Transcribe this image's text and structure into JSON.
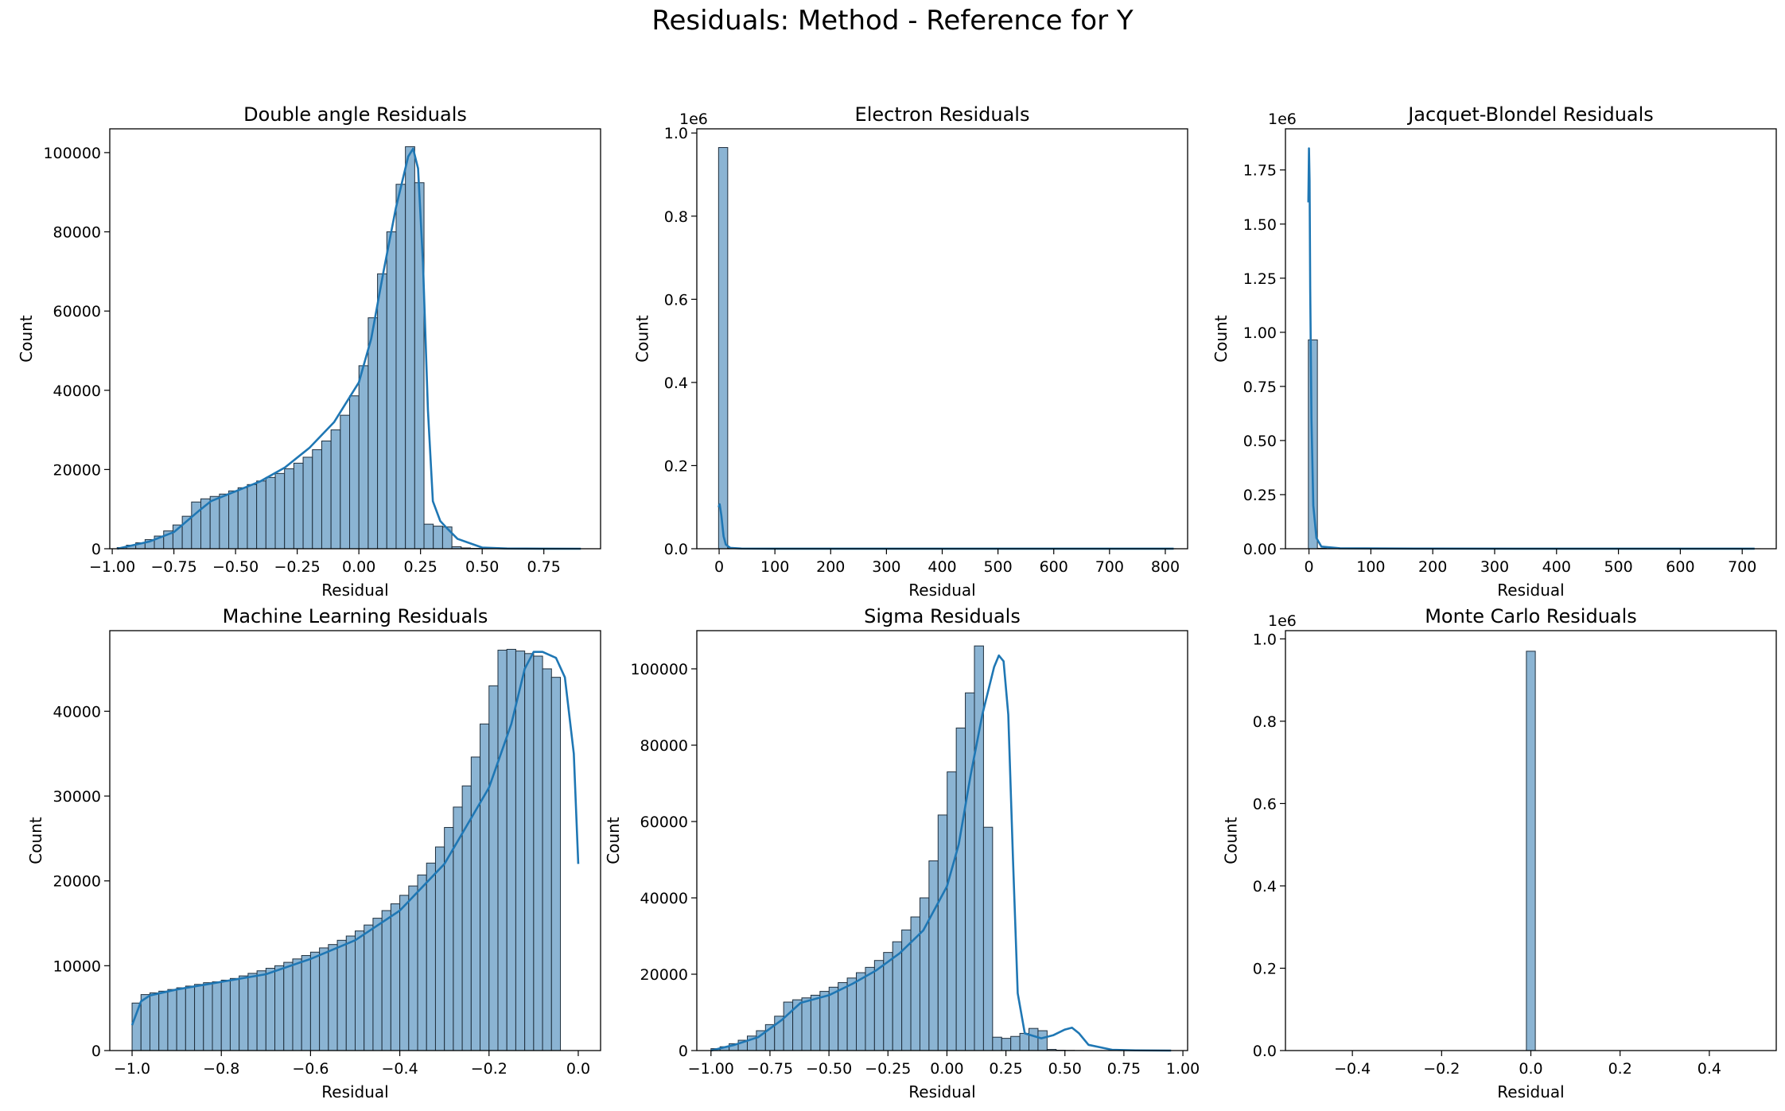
{
  "figure": {
    "suptitle": "Residuals: Method - Reference for Y"
  },
  "colors": {
    "bar_fill": "#8bb4d3",
    "bar_edge": "#1f2f3d",
    "kde_line": "#1f77b4"
  },
  "chart_data": [
    {
      "type": "bar",
      "subtype": "histogram",
      "title": "Double angle Residuals",
      "xlabel": "Residual",
      "ylabel": "Count",
      "xlim": [
        -1.01,
        0.98
      ],
      "ylim": [
        0,
        106000
      ],
      "xticks": [
        -1.0,
        -0.75,
        -0.5,
        -0.25,
        0.0,
        0.25,
        0.5,
        0.75
      ],
      "xtick_labels": [
        "−1.00",
        "−0.75",
        "−0.50",
        "−0.25",
        "0.00",
        "0.25",
        "0.50",
        "0.75"
      ],
      "yticks": [
        0,
        20000,
        40000,
        60000,
        80000,
        100000
      ],
      "ytick_labels": [
        "0",
        "20000",
        "40000",
        "60000",
        "80000",
        "100000"
      ],
      "bin_start": -0.98,
      "bin_width": 0.0377,
      "values": [
        300,
        900,
        1500,
        2300,
        3200,
        4500,
        6000,
        8200,
        11800,
        12600,
        13200,
        13800,
        14600,
        15400,
        16200,
        17100,
        18000,
        19000,
        20200,
        21600,
        23100,
        25000,
        27200,
        30000,
        33700,
        38600,
        46200,
        58300,
        69400,
        80000,
        92000,
        101500,
        92400,
        6200,
        5700,
        5500,
        500,
        200,
        100,
        60,
        30,
        20,
        10,
        5,
        3,
        2,
        1,
        1
      ],
      "kde": {
        "x": [
          -0.98,
          -0.85,
          -0.75,
          -0.65,
          -0.6,
          -0.5,
          -0.4,
          -0.3,
          -0.2,
          -0.1,
          0.0,
          0.05,
          0.1,
          0.15,
          0.2,
          0.22,
          0.24,
          0.26,
          0.28,
          0.3,
          0.33,
          0.36,
          0.4,
          0.5,
          0.6,
          0.75,
          0.9
        ],
        "y": [
          0,
          1800,
          4200,
          9500,
          12000,
          14500,
          17000,
          20500,
          25500,
          32000,
          42000,
          53000,
          70000,
          86000,
          99000,
          101000,
          96000,
          72000,
          35000,
          12000,
          7000,
          5000,
          2500,
          300,
          60,
          10,
          0
        ]
      }
    },
    {
      "type": "bar",
      "subtype": "histogram",
      "title": "Electron Residuals",
      "xlabel": "Residual",
      "ylabel": "Count",
      "scale_label": "1e6",
      "xlim": [
        -40,
        840
      ],
      "ylim": [
        0,
        1.01
      ],
      "xticks": [
        0,
        100,
        200,
        300,
        400,
        500,
        600,
        700,
        800
      ],
      "xtick_labels": [
        "0",
        "100",
        "200",
        "300",
        "400",
        "500",
        "600",
        "700",
        "800"
      ],
      "yticks": [
        0.0,
        0.2,
        0.4,
        0.6,
        0.8,
        1.0
      ],
      "ytick_labels": [
        "0.0",
        "0.2",
        "0.4",
        "0.6",
        "0.8",
        "1.0"
      ],
      "bin_start": -1,
      "bin_width": 16.4,
      "values": [
        0.965,
        0.0015,
        0.0005,
        0.0002,
        0.0001,
        0.0001,
        0.0001,
        0.0001,
        0.0001,
        0.0001,
        0.0001,
        0.0001,
        0.0001,
        0.0001,
        0.0001,
        0.0001,
        0.0001,
        0.0001,
        0.0001,
        0.0001,
        0.0001,
        0.0001,
        0.0001,
        0.0001,
        0.0001,
        0.0001,
        0.0001,
        0.0001,
        0.0001,
        0.0001,
        0.0001,
        0.0001,
        0.0001,
        0.0001,
        0.0001,
        0.0001,
        0.0001,
        0.0001,
        0.0001,
        0.0001,
        0.0001,
        0.0001,
        0.0001,
        0.0001,
        0.0001,
        0.0001,
        0.0001,
        0.0001,
        0.0001,
        0.0001
      ],
      "kde": {
        "x": [
          -1,
          1,
          4,
          8,
          12,
          20,
          40,
          100,
          300,
          500,
          700,
          815
        ],
        "y": [
          0.1,
          0.107,
          0.08,
          0.03,
          0.01,
          0.002,
          0.0005,
          0.0001,
          0.0001,
          0.0001,
          0.0001,
          0.0001
        ]
      }
    },
    {
      "type": "bar",
      "subtype": "histogram",
      "title": "Jacquet-Blondel Residuals",
      "xlabel": "Residual",
      "ylabel": "Count",
      "scale_label": "1e6",
      "xlim": [
        -38,
        755
      ],
      "ylim": [
        0,
        1.94
      ],
      "xticks": [
        0,
        100,
        200,
        300,
        400,
        500,
        600,
        700
      ],
      "xtick_labels": [
        "0",
        "100",
        "200",
        "300",
        "400",
        "500",
        "600",
        "700"
      ],
      "yticks": [
        0.0,
        0.25,
        0.5,
        0.75,
        1.0,
        1.25,
        1.5,
        1.75
      ],
      "ytick_labels": [
        "0.00",
        "0.25",
        "0.50",
        "0.75",
        "1.00",
        "1.25",
        "1.50",
        "1.75"
      ],
      "bin_start": -1,
      "bin_width": 14.6,
      "values": [
        0.965,
        0.002,
        0.0007,
        0.0003,
        0.0002,
        0.0001,
        0.0001,
        0.0001,
        0.0001,
        0.0001,
        0.0001,
        0.0001,
        0.0001,
        0.0001,
        0.0001,
        0.0001,
        0.0001,
        0.0001,
        0.0001,
        0.0001,
        0.0001,
        0.0001,
        0.0001,
        0.0001,
        0.0001,
        0.0001,
        0.0001,
        0.0001,
        0.0001,
        0.0001,
        0.0001,
        0.0001,
        0.0001,
        0.0001,
        0.0001,
        0.0001,
        0.0001,
        0.0001,
        0.0001,
        0.0001,
        0.0001,
        0.0001,
        0.0001,
        0.0001,
        0.0001,
        0.0001,
        0.0001,
        0.0001,
        0.0001,
        0.0001
      ],
      "kde": {
        "x": [
          -1,
          0,
          1,
          2,
          4,
          7,
          12,
          20,
          50,
          200,
          500,
          720
        ],
        "y": [
          1.6,
          1.85,
          1.7,
          1.2,
          0.6,
          0.2,
          0.05,
          0.01,
          0.002,
          0.0005,
          0.0002,
          0.0001
        ]
      }
    },
    {
      "type": "bar",
      "subtype": "histogram",
      "title": "Machine Learning Residuals",
      "xlabel": "Residual",
      "ylabel": "Count",
      "xlim": [
        -1.05,
        0.05
      ],
      "ylim": [
        0,
        49500
      ],
      "xticks": [
        -1.0,
        -0.8,
        -0.6,
        -0.4,
        -0.2,
        0.0
      ],
      "xtick_labels": [
        "−1.0",
        "−0.8",
        "−0.6",
        "−0.4",
        "−0.2",
        "0.0"
      ],
      "yticks": [
        0,
        10000,
        20000,
        30000,
        40000
      ],
      "ytick_labels": [
        "0",
        "10000",
        "20000",
        "30000",
        "40000"
      ],
      "bin_start": -1.0,
      "bin_width": 0.02,
      "values": [
        5600,
        6600,
        6800,
        7000,
        7200,
        7400,
        7600,
        7800,
        8000,
        8100,
        8300,
        8500,
        8800,
        9100,
        9400,
        9700,
        10000,
        10400,
        10800,
        11200,
        11600,
        12100,
        12500,
        13000,
        13500,
        14100,
        14800,
        15600,
        16500,
        17300,
        18300,
        19400,
        20700,
        22100,
        24000,
        26300,
        28700,
        31200,
        34600,
        38500,
        43000,
        47200,
        47300,
        47100,
        46800,
        46500,
        45000,
        44000
      ],
      "kde": {
        "x": [
          -1.0,
          -0.98,
          -0.96,
          -0.9,
          -0.8,
          -0.7,
          -0.6,
          -0.5,
          -0.4,
          -0.3,
          -0.2,
          -0.15,
          -0.12,
          -0.1,
          -0.08,
          -0.05,
          -0.03,
          -0.01,
          0.0
        ],
        "y": [
          3000,
          5800,
          6500,
          7200,
          8100,
          9000,
          10800,
          13000,
          16500,
          22000,
          31000,
          38500,
          45000,
          47000,
          47000,
          46300,
          44000,
          35000,
          22000
        ]
      }
    },
    {
      "type": "bar",
      "subtype": "histogram",
      "title": "Sigma Residuals",
      "xlabel": "Residual",
      "ylabel": "Count",
      "xlim": [
        -1.06,
        1.02
      ],
      "ylim": [
        0,
        110000
      ],
      "xticks": [
        -1.0,
        -0.75,
        -0.5,
        -0.25,
        0.0,
        0.25,
        0.5,
        0.75,
        1.0
      ],
      "xtick_labels": [
        "−1.00",
        "−0.75",
        "−0.50",
        "−0.25",
        "0.00",
        "0.25",
        "0.50",
        "0.75",
        "1.00"
      ],
      "yticks": [
        0,
        20000,
        40000,
        60000,
        80000,
        100000
      ],
      "ytick_labels": [
        "0",
        "20000",
        "40000",
        "60000",
        "80000",
        "100000"
      ],
      "bin_start": -1.0,
      "bin_width": 0.0385,
      "values": [
        500,
        1000,
        1800,
        2700,
        3800,
        5200,
        6800,
        9000,
        12700,
        13300,
        13800,
        14500,
        15500,
        16600,
        17800,
        19000,
        20400,
        21800,
        23600,
        25700,
        28500,
        31600,
        35000,
        40000,
        49700,
        61700,
        73000,
        84500,
        93700,
        106000,
        58500,
        3500,
        3200,
        3700,
        4500,
        5800,
        5200,
        300,
        100,
        50,
        20,
        10,
        5,
        2,
        1,
        1,
        1,
        1
      ],
      "kde": {
        "x": [
          -1.0,
          -0.9,
          -0.8,
          -0.7,
          -0.62,
          -0.5,
          -0.4,
          -0.3,
          -0.2,
          -0.1,
          0.0,
          0.05,
          0.1,
          0.15,
          0.2,
          0.22,
          0.24,
          0.26,
          0.28,
          0.3,
          0.33,
          0.4,
          0.45,
          0.5,
          0.53,
          0.56,
          0.6,
          0.7,
          0.8,
          0.95
        ],
        "y": [
          0,
          1500,
          3500,
          8000,
          12500,
          14500,
          17500,
          21000,
          25500,
          31500,
          43000,
          54000,
          72000,
          88000,
          100500,
          103500,
          102000,
          88000,
          50000,
          15000,
          4500,
          3200,
          4000,
          5500,
          6000,
          4500,
          1500,
          200,
          50,
          0
        ]
      }
    },
    {
      "type": "bar",
      "subtype": "histogram",
      "title": "Monte Carlo Residuals",
      "xlabel": "Residual",
      "ylabel": "Count",
      "scale_label": "1e6",
      "xlim": [
        -0.55,
        0.55
      ],
      "ylim": [
        0,
        1.02
      ],
      "xticks": [
        -0.4,
        -0.2,
        0.0,
        0.2,
        0.4
      ],
      "xtick_labels": [
        "−0.4",
        "−0.2",
        "0.0",
        "0.2",
        "0.4"
      ],
      "yticks": [
        0.0,
        0.2,
        0.4,
        0.6,
        0.8,
        1.0
      ],
      "ytick_labels": [
        "0.0",
        "0.2",
        "0.4",
        "0.6",
        "0.8",
        "1.0"
      ],
      "bin_start": -0.01,
      "bin_width": 0.02,
      "values": [
        0.97
      ],
      "kde": null
    }
  ]
}
